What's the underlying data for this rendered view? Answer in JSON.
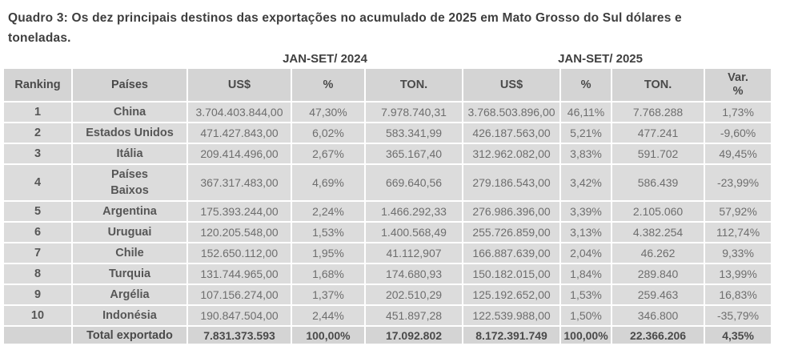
{
  "title": "Quadro 3: Os dez principais destinos das exportações no acumulado de 2025 em Mato Grosso do Sul dólares e\ntoneladas.",
  "colors": {
    "row_bg": "#dcdcdc",
    "header_bg": "#d4d4d4",
    "value_text": "#6e6e6e",
    "heading_text": "#4a4a4a",
    "title_text": "#3e3e3e"
  },
  "table": {
    "group_headers": [
      "JAN-SET/ 2024",
      "JAN-SET/ 2025"
    ],
    "columns": [
      "Ranking",
      "Países",
      "US$",
      "%",
      "TON.",
      "US$",
      "%",
      "TON.",
      "Var.\n%"
    ],
    "rows": [
      {
        "ranking": "1",
        "pais": "China",
        "usd_2024": "3.704.403.844,00",
        "pct_2024": "47,30%",
        "ton_2024": "7.978.740,31",
        "usd_2025": "3.768.503.896,00",
        "pct_2025": "46,11%",
        "ton_2025": "7.768.288",
        "var_pct": "1,73%"
      },
      {
        "ranking": "2",
        "pais": "Estados Unidos",
        "usd_2024": "471.427.843,00",
        "pct_2024": "6,02%",
        "ton_2024": "583.341,99",
        "usd_2025": "426.187.563,00",
        "pct_2025": "5,21%",
        "ton_2025": "477.241",
        "var_pct": "-9,60%"
      },
      {
        "ranking": "3",
        "pais": "Itália",
        "usd_2024": "209.414.496,00",
        "pct_2024": "2,67%",
        "ton_2024": "365.167,40",
        "usd_2025": "312.962.082,00",
        "pct_2025": "3,83%",
        "ton_2025": "591.702",
        "var_pct": "49,45%"
      },
      {
        "ranking": "4",
        "pais": "Países\nBaixos",
        "usd_2024": "367.317.483,00",
        "pct_2024": "4,69%",
        "ton_2024": "669.640,56",
        "usd_2025": "279.186.543,00",
        "pct_2025": "3,42%",
        "ton_2025": "586.439",
        "var_pct": "-23,99%"
      },
      {
        "ranking": "5",
        "pais": "Argentina",
        "usd_2024": "175.393.244,00",
        "pct_2024": "2,24%",
        "ton_2024": "1.466.292,33",
        "usd_2025": "276.986.396,00",
        "pct_2025": "3,39%",
        "ton_2025": "2.105.060",
        "var_pct": "57,92%"
      },
      {
        "ranking": "6",
        "pais": "Uruguai",
        "usd_2024": "120.205.548,00",
        "pct_2024": "1,53%",
        "ton_2024": "1.400.568,49",
        "usd_2025": "255.726.859,00",
        "pct_2025": "3,13%",
        "ton_2025": "4.382.254",
        "var_pct": "112,74%"
      },
      {
        "ranking": "7",
        "pais": "Chile",
        "usd_2024": "152.650.112,00",
        "pct_2024": "1,95%",
        "ton_2024": "41.112,907",
        "usd_2025": "166.887.639,00",
        "pct_2025": "2,04%",
        "ton_2025": "46.262",
        "var_pct": "9,33%"
      },
      {
        "ranking": "8",
        "pais": "Turquia",
        "usd_2024": "131.744.965,00",
        "pct_2024": "1,68%",
        "ton_2024": "174.680,93",
        "usd_2025": "150.182.015,00",
        "pct_2025": "1,84%",
        "ton_2025": "289.840",
        "var_pct": "13,99%"
      },
      {
        "ranking": "9",
        "pais": "Argélia",
        "usd_2024": "107.156.274,00",
        "pct_2024": "1,37%",
        "ton_2024": "202.510,29",
        "usd_2025": "125.192.652,00",
        "pct_2025": "1,53%",
        "ton_2025": "259.463",
        "var_pct": "16,83%"
      },
      {
        "ranking": "10",
        "pais": "Indonésia",
        "usd_2024": "190.847.504,00",
        "pct_2024": "2,44%",
        "ton_2024": "451.897,28",
        "usd_2025": "122.539.988,00",
        "pct_2025": "1,50%",
        "ton_2025": "346.800",
        "var_pct": "-35,79%"
      }
    ],
    "total": {
      "ranking": "",
      "label": "Total exportado",
      "usd_2024": "7.831.373.593",
      "pct_2024": "100,00%",
      "ton_2024": "17.092.802",
      "usd_2025": "8.172.391.749",
      "pct_2025": "100,00%",
      "ton_2025": "22.366.206",
      "var_pct": "4,35%"
    }
  }
}
